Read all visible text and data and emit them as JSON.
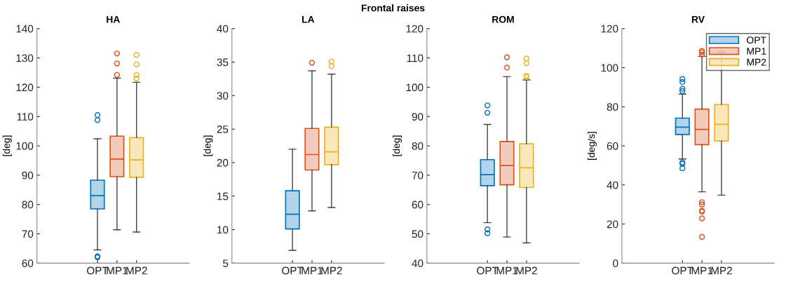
{
  "chart_data": [
    {
      "type": "box",
      "title": "HA",
      "ylabel": "[deg]",
      "annotations": [
        "Frontal raises"
      ],
      "categories": [
        "OPT",
        "MP1",
        "MP2"
      ],
      "ylim": [
        60,
        140
      ],
      "yticks": [
        60,
        70,
        80,
        90,
        100,
        110,
        120,
        130,
        140
      ],
      "grid": false,
      "legend": false,
      "series": [
        {
          "color": "#0072bd",
          "boxes": [
            {
              "low": 64.5,
              "q1": 78.5,
              "median": 83.0,
              "q3": 88.3,
              "high": 102.4,
              "outliers": [
                110.5,
                108.8,
                62.3,
                62.0
              ]
            },
            null,
            null
          ]
        },
        {
          "color": "#d95319",
          "boxes": [
            null,
            {
              "low": 71.4,
              "q1": 89.5,
              "median": 95.5,
              "q3": 103.3,
              "high": 123.1,
              "outliers": [
                131.5,
                128.1,
                124.2
              ]
            },
            null
          ]
        },
        {
          "color": "#edb120",
          "boxes": [
            null,
            null,
            {
              "low": 70.6,
              "q1": 89.3,
              "median": 95.2,
              "q3": 102.8,
              "high": 121.7,
              "outliers": [
                131.0,
                127.8,
                124.2,
                123.0
              ]
            }
          ]
        }
      ]
    },
    {
      "type": "box",
      "title": "LA",
      "ylabel": "[deg]",
      "categories": [
        "OPT",
        "MP1",
        "MP2"
      ],
      "ylim": [
        5,
        40
      ],
      "yticks": [
        5,
        10,
        15,
        20,
        25,
        30,
        35,
        40
      ],
      "grid": false,
      "legend": false,
      "series": [
        {
          "color": "#0072bd",
          "boxes": [
            {
              "low": 6.9,
              "q1": 10.1,
              "median": 12.3,
              "q3": 15.8,
              "high": 22.0
            },
            null,
            null
          ]
        },
        {
          "color": "#d95319",
          "boxes": [
            null,
            {
              "low": 12.8,
              "q1": 18.9,
              "median": 21.2,
              "q3": 25.1,
              "high": 33.7,
              "outliers": [
                34.9
              ]
            },
            null
          ]
        },
        {
          "color": "#edb120",
          "boxes": [
            null,
            null,
            {
              "low": 13.3,
              "q1": 19.7,
              "median": 21.6,
              "q3": 25.3,
              "high": 33.2,
              "outliers": [
                35.1,
                34.4
              ]
            }
          ]
        }
      ]
    },
    {
      "type": "box",
      "title": "ROM",
      "ylabel": "[deg]",
      "categories": [
        "OPT",
        "MP1",
        "MP2"
      ],
      "ylim": [
        40,
        120
      ],
      "yticks": [
        40,
        50,
        60,
        70,
        80,
        90,
        100,
        110,
        120
      ],
      "grid": false,
      "legend": false,
      "series": [
        {
          "color": "#0072bd",
          "boxes": [
            {
              "low": 53.8,
              "q1": 66.4,
              "median": 70.2,
              "q3": 75.3,
              "high": 87.3,
              "outliers": [
                93.8,
                91.3,
                51.5,
                50.2
              ]
            },
            null,
            null
          ]
        },
        {
          "color": "#d95319",
          "boxes": [
            null,
            {
              "low": 48.9,
              "q1": 66.7,
              "median": 73.3,
              "q3": 81.5,
              "high": 103.6,
              "outliers": [
                110.2,
                106.7
              ]
            },
            null
          ]
        },
        {
          "color": "#edb120",
          "boxes": [
            null,
            null,
            {
              "low": 46.9,
              "q1": 65.8,
              "median": 72.5,
              "q3": 80.7,
              "high": 102.5,
              "outliers": [
                109.8,
                108.2,
                103.9,
                103.5
              ]
            }
          ]
        }
      ]
    },
    {
      "type": "box",
      "title": "RV",
      "ylabel": "[deg/s]",
      "categories": [
        "OPT",
        "MP1",
        "MP2"
      ],
      "ylim": [
        0,
        120
      ],
      "yticks": [
        0,
        20,
        40,
        60,
        80,
        100,
        120
      ],
      "grid": false,
      "legend": "top right",
      "series": [
        {
          "name": "OPT",
          "color": "#0072bd",
          "boxes": [
            {
              "low": 53.3,
              "q1": 65.8,
              "median": 69.6,
              "q3": 74.2,
              "high": 86.5,
              "outliers": [
                94.2,
                92.7,
                89.2,
                88.0,
                51.5,
                50.8,
                48.5
              ]
            },
            null,
            null
          ]
        },
        {
          "name": "MP1",
          "color": "#d95319",
          "boxes": [
            null,
            {
              "low": 36.5,
              "q1": 60.6,
              "median": 68.4,
              "q3": 78.8,
              "high": 105.8,
              "outliers": [
                108.6,
                107.9,
                106.7,
                31.2,
                30.0,
                26.8,
                26.4,
                22.9,
                13.4
              ]
            },
            null
          ]
        },
        {
          "name": "MP2",
          "color": "#edb120",
          "boxes": [
            null,
            null,
            {
              "low": 34.8,
              "q1": 62.5,
              "median": 71.0,
              "q3": 81.2,
              "high": 108.1,
              "outliers": [
                111.1
              ]
            }
          ]
        }
      ]
    }
  ]
}
